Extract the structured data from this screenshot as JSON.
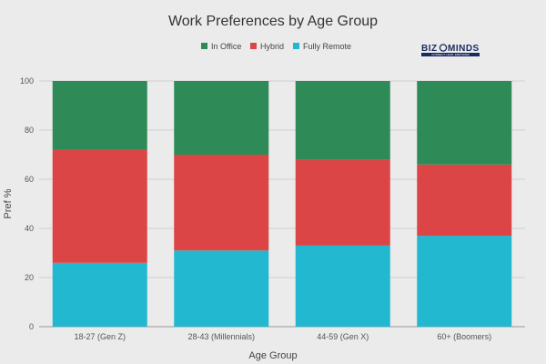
{
  "chart_data": {
    "type": "bar",
    "stacked": true,
    "title": "Work Preferences by Age Group",
    "xlabel": "Age Group",
    "ylabel": "Pref %",
    "ylim": [
      0,
      100
    ],
    "yticks": [
      0,
      20,
      40,
      60,
      80,
      100
    ],
    "grid": true,
    "legend_position": "top",
    "categories": [
      "18-27 (Gen Z)",
      "28-43 (Millennials)",
      "44-59 (Gen X)",
      "60+ (Boomers)"
    ],
    "series": [
      {
        "name": "Fully Remote",
        "color": "#22b8cf",
        "values": [
          26,
          31,
          33,
          37
        ]
      },
      {
        "name": "Hybrid",
        "color": "#dc4545",
        "values": [
          46,
          39,
          35,
          29
        ]
      },
      {
        "name": "In Office",
        "color": "#2e8b57",
        "values": [
          28,
          30,
          32,
          34
        ]
      }
    ],
    "legend_order": [
      "In Office",
      "Hybrid",
      "Fully Remote"
    ]
  },
  "logo": {
    "text_left": "BIZ",
    "text_right": "MINDS",
    "tagline": "CONNECT. LEAD. EMPOWER"
  }
}
